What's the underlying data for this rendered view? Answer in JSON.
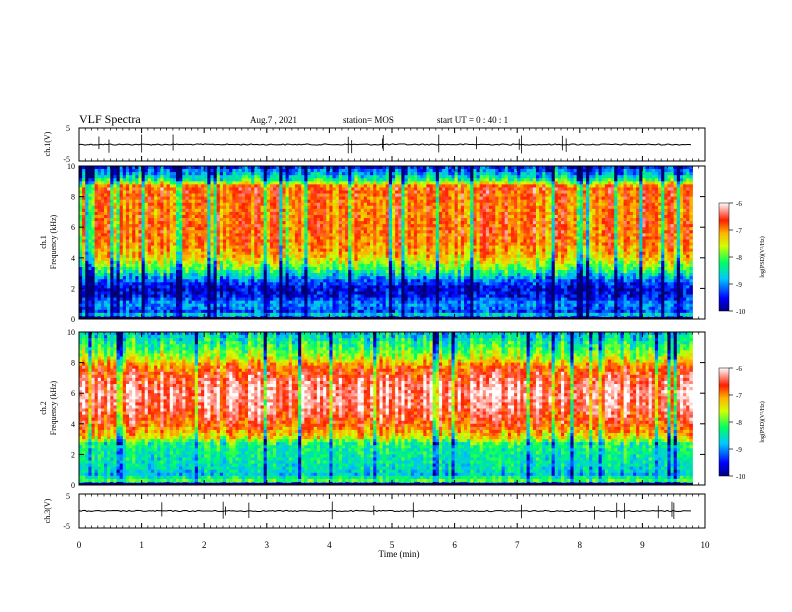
{
  "header": {
    "title": "VLF Spectra",
    "date": "Aug.7 , 2021",
    "station": "station= MOS",
    "start_ut": "start UT = 0 : 40 : 1"
  },
  "chart_data": [
    {
      "type": "line",
      "name": "ch1-waveform",
      "ylabel": "ch.1(V)",
      "ylim": [
        -5,
        5
      ],
      "yticks": [
        5,
        -5
      ],
      "xlim": [
        0,
        10
      ],
      "level": 0
    },
    {
      "type": "heatmap",
      "name": "ch1-spectrogram",
      "ylabel_line1": "ch.1",
      "ylabel_line2": "Frequency (kHz)",
      "ylim": [
        0,
        10
      ],
      "yticks": [
        0,
        2,
        4,
        6,
        8,
        10
      ],
      "xlim": [
        0,
        10
      ],
      "data_end_min": 9.8,
      "colorbar": {
        "label": "log(PSD)(V²/Hz)",
        "range": [
          -10,
          -6
        ],
        "ticks": [
          -6,
          -7,
          -8,
          -9,
          -10
        ]
      },
      "log_psd_profile": {
        "freq_khz": [
          0,
          0.2,
          0.5,
          1.0,
          1.5,
          2.0,
          2.5,
          3.0,
          3.5,
          4.0,
          5.0,
          6.0,
          7.0,
          8.0,
          8.5,
          8.8,
          9.0,
          9.4,
          10.0
        ],
        "value": [
          -9.8,
          -8.6,
          -9.4,
          -9.1,
          -9.6,
          -9.7,
          -9.3,
          -8.6,
          -8.0,
          -7.5,
          -7.1,
          -7.0,
          -7.1,
          -7.0,
          -6.9,
          -7.3,
          -8.3,
          -8.9,
          -9.6
        ]
      }
    },
    {
      "type": "heatmap",
      "name": "ch2-spectrogram",
      "ylabel_line1": "ch.2",
      "ylabel_line2": "Frequency (kHz)",
      "ylim": [
        0,
        10
      ],
      "yticks": [
        0,
        2,
        4,
        6,
        8,
        10
      ],
      "xlim": [
        0,
        10
      ],
      "data_end_min": 9.8,
      "colorbar": {
        "label": "log(PSD)(V²/Hz)",
        "range": [
          -10,
          -6
        ],
        "ticks": [
          -6,
          -7,
          -8,
          -9,
          -10
        ]
      },
      "log_psd_profile": {
        "freq_khz": [
          0,
          0.3,
          0.7,
          1.0,
          2.0,
          2.8,
          3.0,
          3.5,
          4.0,
          5.0,
          6.0,
          7.0,
          7.8,
          8.2,
          9.0,
          9.5,
          10.0
        ],
        "value": [
          -9.5,
          -8.2,
          -8.9,
          -8.7,
          -8.6,
          -8.4,
          -7.7,
          -7.3,
          -6.9,
          -6.5,
          -6.3,
          -6.6,
          -7.1,
          -7.7,
          -8.3,
          -8.6,
          -8.9
        ]
      }
    },
    {
      "type": "line",
      "name": "ch3-waveform",
      "ylabel": "ch.3(V)",
      "ylim": [
        -5,
        5
      ],
      "yticks": [
        5,
        -5
      ],
      "xlim": [
        0,
        10
      ],
      "level": 0
    }
  ],
  "xaxis": {
    "label": "Time (min)",
    "ticks": [
      0,
      1,
      2,
      3,
      4,
      5,
      6,
      7,
      8,
      9,
      10
    ]
  }
}
